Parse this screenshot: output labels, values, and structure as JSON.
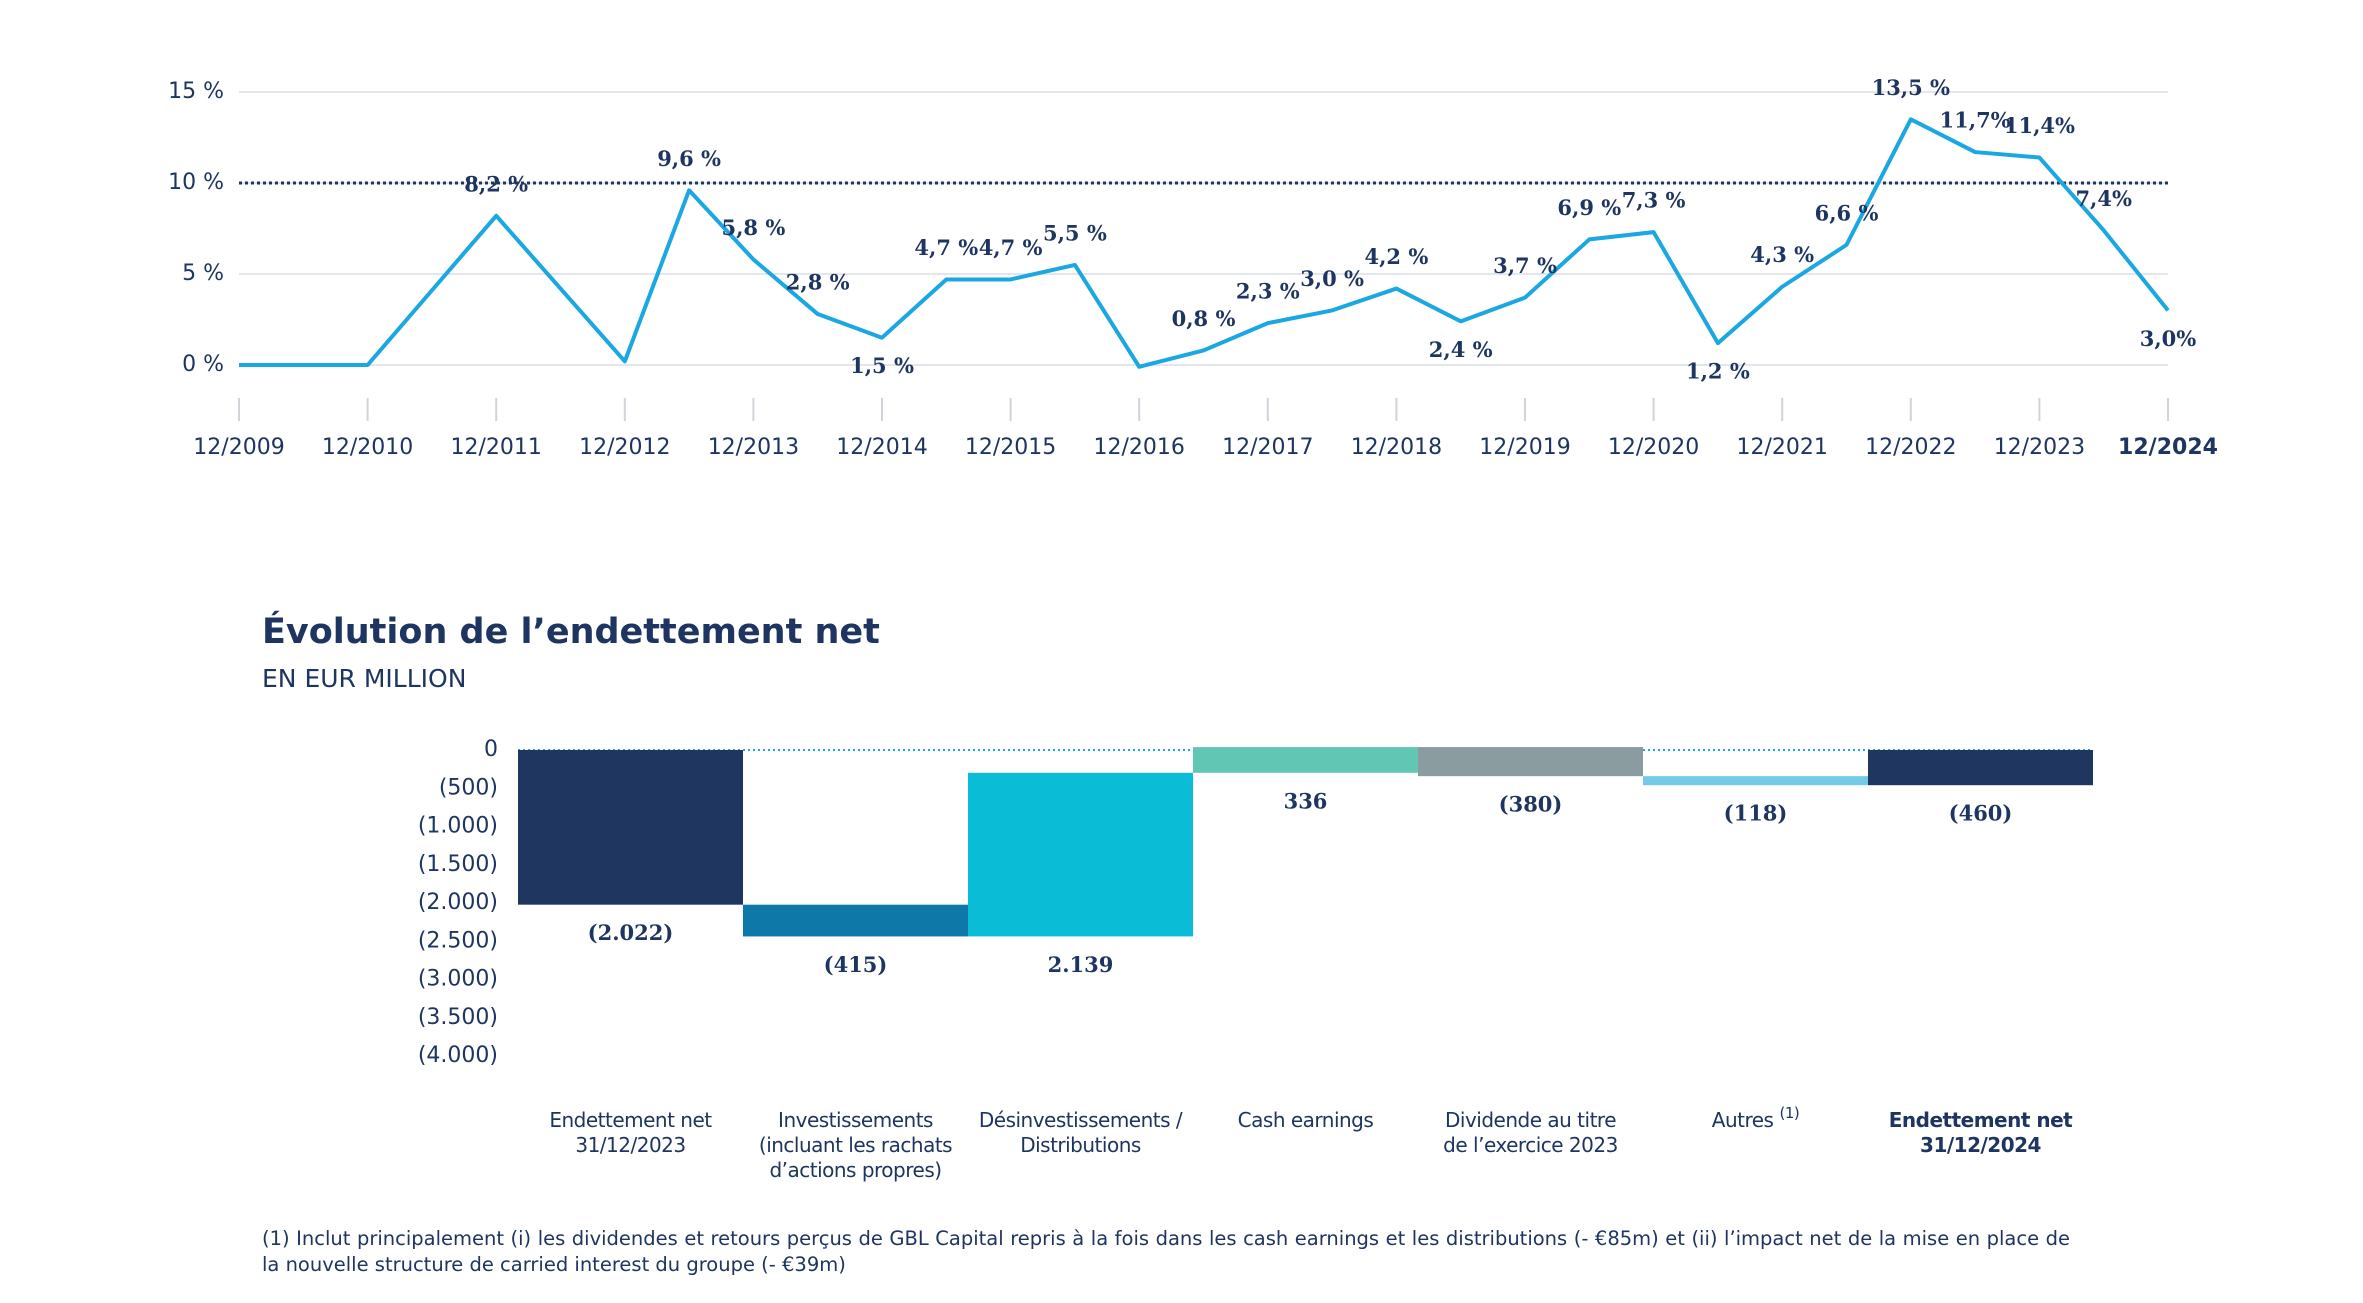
{
  "chart_data": [
    {
      "type": "line",
      "categories": [
        "12/2009",
        null,
        "12/2010",
        null,
        "12/2011",
        null,
        "12/2012",
        null,
        "12/2013",
        null,
        "12/2014",
        null,
        "12/2015",
        null,
        "12/2016",
        null,
        "12/2017",
        null,
        "12/2018",
        null,
        "12/2019",
        null,
        "12/2020",
        null,
        "12/2021",
        null,
        "12/2022",
        null,
        "12/2023",
        null,
        "12/2024"
      ],
      "values": [
        0,
        0,
        0,
        4.1,
        8.2,
        4.2,
        0.2,
        9.6,
        5.8,
        2.8,
        1.5,
        4.7,
        4.7,
        5.5,
        -0.1,
        0.8,
        2.3,
        3.0,
        4.2,
        2.4,
        3.7,
        6.9,
        7.3,
        1.2,
        4.3,
        6.6,
        13.5,
        11.7,
        11.4,
        7.4,
        3.0
      ],
      "value_labels": [
        null,
        null,
        null,
        null,
        "8,2 %",
        null,
        null,
        "9,6 %",
        "5,8 %",
        "2,8 %",
        "1,5 %",
        "4,7 %",
        "4,7 %",
        "5,5 %",
        null,
        "0,8 %",
        "2,3 %",
        "3,0 %",
        "4,2 %",
        "2,4 %",
        "3,7 %",
        "6,9 %",
        "7,3 %",
        "1,2 %",
        "4,3 %",
        "6,6 %",
        "13,5 %",
        "11,7%",
        "11,4%",
        "7,4%",
        "3,0%"
      ],
      "color": "#1ba7e1",
      "ylim": [
        0,
        15
      ],
      "yticks": [
        {
          "value": 0,
          "label": "0 %"
        },
        {
          "value": 5,
          "label": "5 %"
        },
        {
          "value": 10,
          "label": "10 %"
        },
        {
          "value": 15,
          "label": "15 %"
        }
      ],
      "reference_line": 10,
      "grid": true,
      "bold_last_category": true
    },
    {
      "type": "waterfall",
      "title": "Évolution de l’endettement net",
      "subtitle": "EN EUR MILLION",
      "categories": [
        [
          "Endettement net",
          "31/12/2023"
        ],
        [
          "Investissements",
          "(incluant les rachats",
          "d’actions propres)"
        ],
        [
          "Désinvestissements /",
          "Distributions"
        ],
        [
          "Cash earnings"
        ],
        [
          "Dividende au titre",
          "de l’exercice 2023"
        ],
        [
          "Autres"
        ],
        [
          "Endettement net",
          "31/12/2024"
        ]
      ],
      "category_notes": [
        null,
        null,
        null,
        null,
        null,
        "(1)",
        null
      ],
      "kinds": [
        "total",
        "delta",
        "delta",
        "delta",
        "delta",
        "delta",
        "total"
      ],
      "values": [
        -2022,
        -415,
        2139,
        336,
        -380,
        -118,
        -460
      ],
      "value_labels": [
        "(2.022)",
        "(415)",
        "2.139",
        "336",
        "(380)",
        "(118)",
        "(460)"
      ],
      "colors": [
        "#1e3660",
        "#0e78a8",
        "#0bbcd6",
        "#62c6b4",
        "#8a9ca0",
        "#72cbe6",
        "#1e3660"
      ],
      "ylim": [
        -4000,
        0
      ],
      "yticks": [
        0,
        {
          "value": -500,
          "label": "(500)"
        },
        {
          "value": -1000,
          "label": "(1.000)"
        },
        {
          "value": -1500,
          "label": "(1.500)"
        },
        {
          "value": -2000,
          "label": "(2.000)"
        },
        {
          "value": -2500,
          "label": "(2.500)"
        },
        {
          "value": -3000,
          "label": "(3.000)"
        },
        {
          "value": -3500,
          "label": "(3.500)"
        },
        {
          "value": -4000,
          "label": "(4.000)"
        }
      ],
      "bold_last_category": true,
      "footnote": "(1) Inclut principalement (i) les dividendes et retours perçus de GBL Capital repris à la fois dans les cash earnings et les distributions (- €85m) et (ii) l’impact net de la mise en place de la nouvelle structure de carried interest du groupe (- €39m)"
    }
  ]
}
